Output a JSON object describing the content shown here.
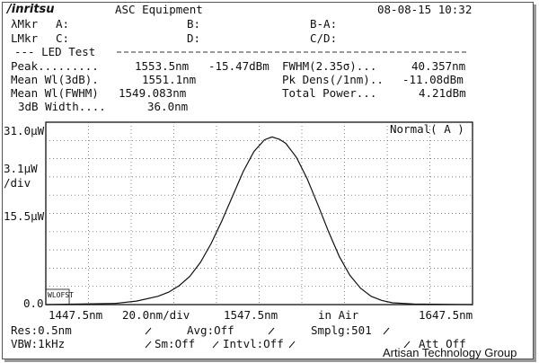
{
  "header": {
    "brand": "/inritsu",
    "title": "ASC Equipment",
    "datetime": "08-08-15 10:32"
  },
  "markers": {
    "lambda_label": "λMkr",
    "l_label": "LMkr",
    "a": "A:",
    "b": "B:",
    "c": "C:",
    "d": "D:",
    "ba": "B-A:",
    "cd": "C/D:"
  },
  "led_test": {
    "heading": "--- LED Test",
    "peak_label": "Peak.........",
    "peak_value": "1553.5nm",
    "peak_level": "-15.47dBm",
    "mean_3db_label": "Mean Wl(3dB).",
    "mean_3db_value": "1551.1nm",
    "mean_fwhm_label": "Mean Wl(FWHM)",
    "mean_fwhm_value": "1549.083nm",
    "width_label": "3dB Width....",
    "width_value": "36.0nm",
    "fwhm_label": "FWHM(2.35σ)...",
    "fwhm_value": "40.357nm",
    "pkdens_label": "Pk Dens(/1nm)..",
    "pkdens_value": "-11.08dBm",
    "total_label": "Total Power...",
    "total_value": "4.21dBm"
  },
  "chart": {
    "y_top": "31.0μW",
    "y_div": "3.1μW",
    "y_div_unit": "/div",
    "y_mid": "15.5μW",
    "y_bottom": "0.0",
    "mode_label": "Normal( A )",
    "corner_label": "WLOFST",
    "x_left": "1447.5nm",
    "x_div": "20.0nm/div",
    "x_center": "1547.5nm",
    "x_medium": "in Air",
    "x_right": "1647.5nm"
  },
  "chart_data": {
    "type": "line",
    "x_range_nm": [
      1447.5,
      1647.5
    ],
    "y_range_uW": [
      0,
      31.0
    ],
    "series": [
      {
        "x": [
          1447.5,
          1480,
          1490,
          1500,
          1505,
          1510,
          1515,
          1520,
          1525,
          1530,
          1535,
          1540,
          1545,
          1550,
          1553.5,
          1557,
          1560,
          1565,
          1570,
          1575,
          1580,
          1585,
          1590,
          1595,
          1600,
          1605,
          1610,
          1620,
          1647.5
        ],
        "y": [
          0.0,
          0.2,
          0.6,
          1.4,
          2.1,
          3.2,
          4.8,
          7.2,
          10.4,
          14.2,
          18.4,
          22.6,
          26.0,
          28.0,
          28.5,
          28.1,
          27.4,
          25.0,
          21.4,
          17.0,
          12.4,
          8.2,
          5.0,
          2.8,
          1.4,
          0.7,
          0.3,
          0.1,
          0.0
        ]
      }
    ],
    "grid": true
  },
  "footer": {
    "res": "Res:0.5nm",
    "avg": "Avg:Off",
    "smplg": "Smplg:501",
    "vbw": "VBW:1kHz",
    "sm": "Sm:Off",
    "intvl": "Intvl:Off",
    "att": "Att Off"
  },
  "watermark": "Artisan Technology Group"
}
